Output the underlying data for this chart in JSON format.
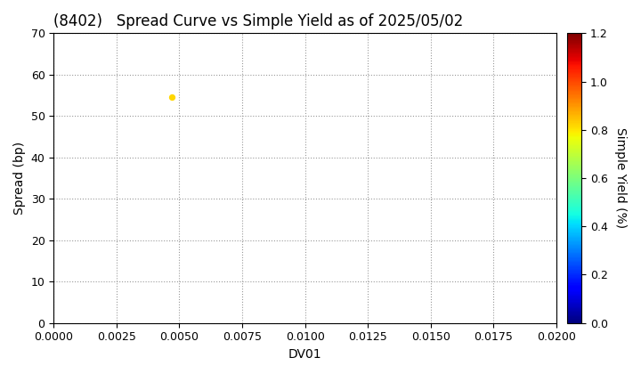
{
  "title": "(8402)   Spread Curve vs Simple Yield as of 2025/05/02",
  "xlabel": "DV01",
  "ylabel": "Spread (bp)",
  "colorbar_label": "Simple Yield (%)",
  "xlim": [
    0.0,
    0.02
  ],
  "ylim": [
    0,
    70
  ],
  "xticks": [
    0.0,
    0.0025,
    0.005,
    0.0075,
    0.01,
    0.0125,
    0.015,
    0.0175,
    0.02
  ],
  "yticks": [
    0,
    10,
    20,
    30,
    40,
    50,
    60,
    70
  ],
  "colorbar_ticks": [
    0.0,
    0.2,
    0.4,
    0.6,
    0.8,
    1.0,
    1.2
  ],
  "colorbar_vmin": 0.0,
  "colorbar_vmax": 1.2,
  "scatter_x": [
    0.0047
  ],
  "scatter_y": [
    54.5
  ],
  "scatter_color_value": [
    0.82
  ],
  "scatter_size": 18,
  "background_color": "#ffffff",
  "grid_color": "#999999",
  "title_fontsize": 12,
  "axis_fontsize": 10,
  "tick_fontsize": 9,
  "colorbar_fontsize": 10
}
